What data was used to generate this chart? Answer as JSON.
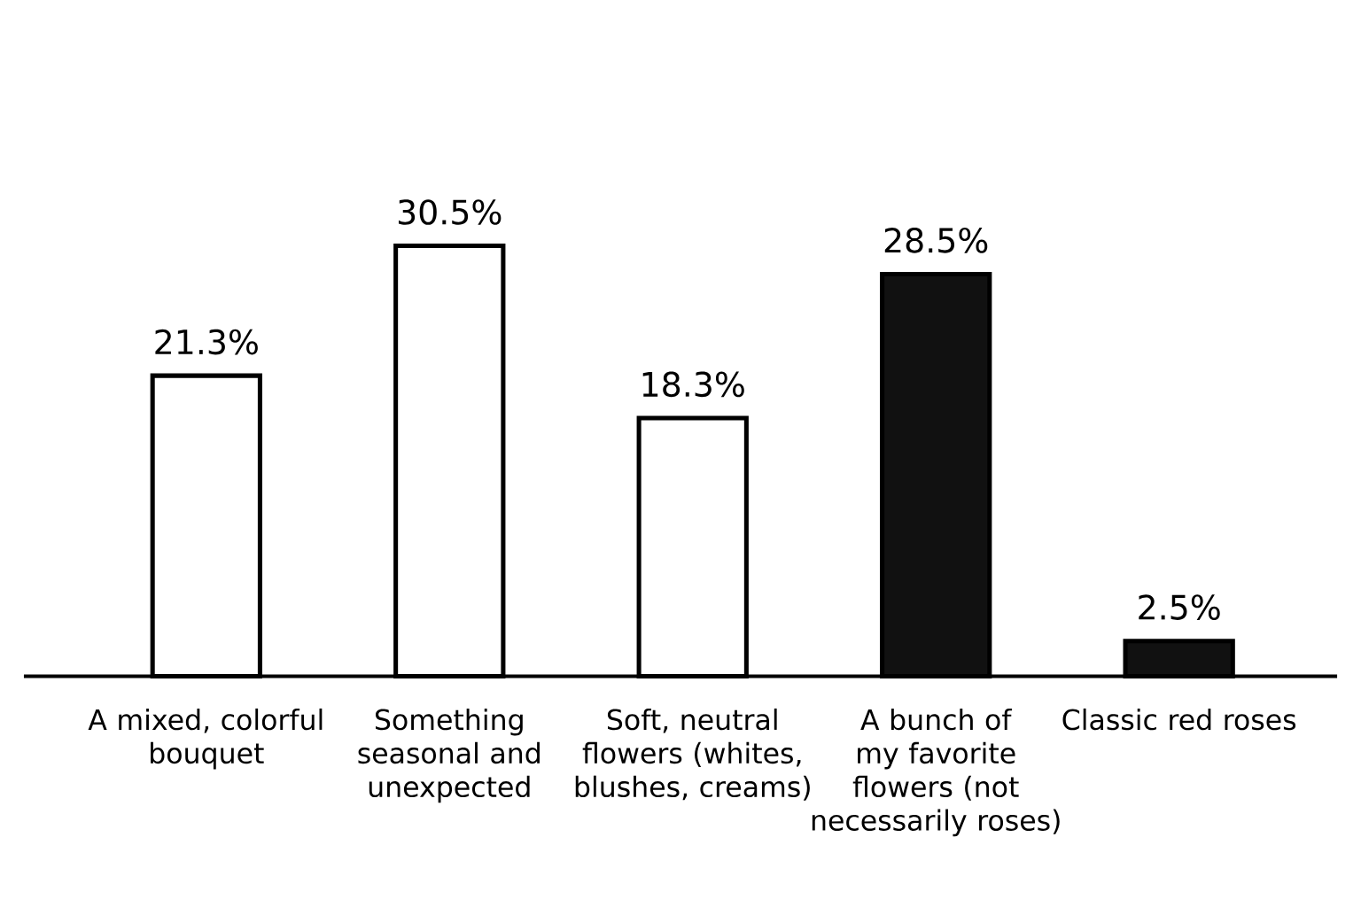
{
  "chart_data": {
    "type": "bar",
    "categories": [
      "A mixed, colorful bouquet",
      "Something seasonal and unexpected",
      "Soft, neutral flowers (whites, blushes, creams)",
      "A bunch of my favorite flowers (not necessarily roses)",
      "Classic red roses"
    ],
    "values": [
      21.3,
      30.5,
      18.3,
      28.5,
      2.5
    ],
    "colors": [
      "#ffffff",
      "#ffffff",
      "#ffffff",
      "#111111",
      "#111111"
    ],
    "value_labels": [
      "21.3%",
      "30.5%",
      "18.3%",
      "28.5%",
      "2.5%"
    ],
    "tick_labels": "x"
  }
}
